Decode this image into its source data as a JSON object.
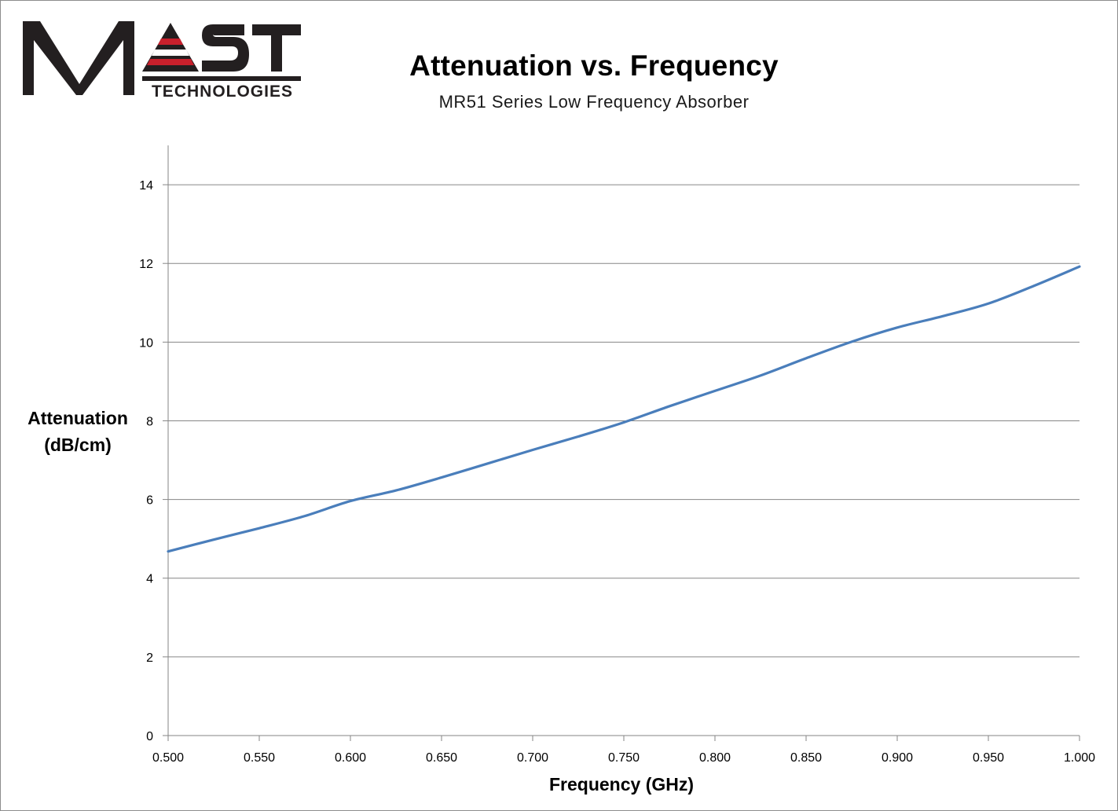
{
  "logo": {
    "word": "MAST",
    "sub": "TECHNOLOGIES",
    "colors": {
      "dark": "#231f20",
      "accent": "#c8202c"
    }
  },
  "chart_data": {
    "type": "line",
    "title": "Attenuation vs. Frequency",
    "subtitle": "MR51 Series Low Frequency Absorber",
    "ylabel_line1": "Attenuation",
    "ylabel_line2": "(dB/cm)",
    "xlabel": "Frequency (GHz)",
    "xlim": [
      0.5,
      1.0
    ],
    "ylim": [
      0,
      15
    ],
    "x_ticks": [
      "0.500",
      "0.550",
      "0.600",
      "0.650",
      "0.700",
      "0.750",
      "0.800",
      "0.850",
      "0.900",
      "0.950",
      "1.000"
    ],
    "y_ticks": [
      "0",
      "2",
      "4",
      "6",
      "8",
      "10",
      "12",
      "14"
    ],
    "grid": "horizontal",
    "legend": "none",
    "series": [
      {
        "color": "#4a7ebb",
        "points": [
          [
            0.5,
            4.68
          ],
          [
            0.525,
            4.98
          ],
          [
            0.55,
            5.27
          ],
          [
            0.575,
            5.58
          ],
          [
            0.6,
            5.96
          ],
          [
            0.625,
            6.23
          ],
          [
            0.65,
            6.56
          ],
          [
            0.675,
            6.91
          ],
          [
            0.7,
            7.26
          ],
          [
            0.725,
            7.6
          ],
          [
            0.75,
            7.96
          ],
          [
            0.775,
            8.37
          ],
          [
            0.8,
            8.76
          ],
          [
            0.825,
            9.15
          ],
          [
            0.85,
            9.59
          ],
          [
            0.875,
            10.01
          ],
          [
            0.9,
            10.37
          ],
          [
            0.925,
            10.66
          ],
          [
            0.95,
            10.98
          ],
          [
            0.975,
            11.43
          ],
          [
            1.0,
            11.92
          ]
        ]
      }
    ]
  }
}
